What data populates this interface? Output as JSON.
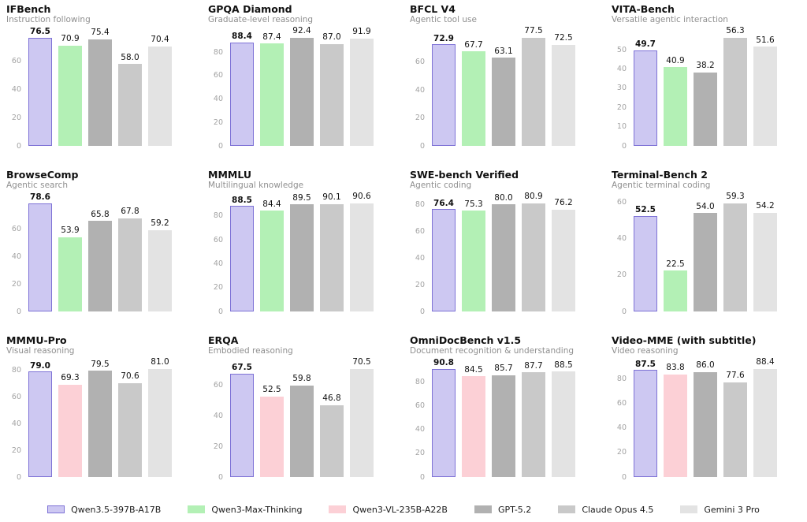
{
  "page": {
    "background": "#ffffff"
  },
  "highlight_model": "Qwen3.5-397B-A17B",
  "colors": {
    "Qwen3.5-397B-A17B": {
      "fill": "#cdc8f2",
      "edge": "#7e72d6"
    },
    "Qwen3-Max-Thinking": {
      "fill": "#b3f0b5"
    },
    "Qwen3-VL-235B-A22B": {
      "fill": "#fcd0d6"
    },
    "GPT-5.2": {
      "fill": "#b1b1b1"
    },
    "Claude Opus 4.5": {
      "fill": "#c9c9c9"
    },
    "Gemini 3 Pro": {
      "fill": "#e3e3e3"
    }
  },
  "legend": {
    "items": [
      {
        "label": "Qwen3.5-397B-A17B",
        "key": "Qwen3.5-397B-A17B"
      },
      {
        "label": "Qwen3-Max-Thinking",
        "key": "Qwen3-Max-Thinking"
      },
      {
        "label": "Qwen3-VL-235B-A22B",
        "key": "Qwen3-VL-235B-A22B"
      },
      {
        "label": "GPT-5.2",
        "key": "GPT-5.2"
      },
      {
        "label": "Claude Opus 4.5",
        "key": "Claude Opus 4.5"
      },
      {
        "label": "Gemini 3 Pro",
        "key": "Gemini 3 Pro"
      }
    ]
  },
  "chart_data": [
    {
      "type": "bar",
      "title": "IFBench",
      "subtitle": "Instruction following",
      "models": [
        "Qwen3.5-397B-A17B",
        "Qwen3-Max-Thinking",
        "GPT-5.2",
        "Claude Opus 4.5",
        "Gemini 3 Pro"
      ],
      "values": [
        76.5,
        70.9,
        75.4,
        58.0,
        70.4
      ],
      "labels": [
        "76.5",
        "70.9",
        "75.4",
        "58.0",
        "70.4"
      ],
      "yticks": [
        0,
        20,
        40,
        60
      ],
      "ylim": [
        0,
        80.3
      ],
      "ymax": 80.3
    },
    {
      "type": "bar",
      "title": "GPQA Diamond",
      "subtitle": "Graduate-level reasoning",
      "models": [
        "Qwen3.5-397B-A17B",
        "Qwen3-Max-Thinking",
        "GPT-5.2",
        "Claude Opus 4.5",
        "Gemini 3 Pro"
      ],
      "values": [
        88.4,
        87.4,
        92.4,
        87.0,
        91.9
      ],
      "labels": [
        "88.4",
        "87.4",
        "92.4",
        "87.0",
        "91.9"
      ],
      "yticks": [
        0,
        20,
        40,
        60,
        80
      ],
      "ylim": [
        0,
        97.0
      ],
      "ymax": 97.0
    },
    {
      "type": "bar",
      "title": "BFCL V4",
      "subtitle": "Agentic tool use",
      "models": [
        "Qwen3.5-397B-A17B",
        "Qwen3-Max-Thinking",
        "GPT-5.2",
        "Claude Opus 4.5",
        "Gemini 3 Pro"
      ],
      "values": [
        72.9,
        67.7,
        63.1,
        77.5,
        72.5
      ],
      "labels": [
        "72.9",
        "67.7",
        "63.1",
        "77.5",
        "72.5"
      ],
      "yticks": [
        0,
        20,
        40,
        60
      ],
      "ylim": [
        0,
        81.4
      ],
      "ymax": 81.4
    },
    {
      "type": "bar",
      "title": "VITA-Bench",
      "subtitle": "Versatile agentic interaction",
      "models": [
        "Qwen3.5-397B-A17B",
        "Qwen3-Max-Thinking",
        "GPT-5.2",
        "Claude Opus 4.5",
        "Gemini 3 Pro"
      ],
      "values": [
        49.7,
        40.9,
        38.2,
        56.3,
        51.6
      ],
      "labels": [
        "49.7",
        "40.9",
        "38.2",
        "56.3",
        "51.6"
      ],
      "yticks": [
        0,
        10,
        20,
        30,
        40,
        50
      ],
      "ylim": [
        0,
        59.1
      ],
      "ymax": 59.1
    },
    {
      "type": "bar",
      "title": "BrowseComp",
      "subtitle": "Agentic search",
      "models": [
        "Qwen3.5-397B-A17B",
        "Qwen3-Max-Thinking",
        "GPT-5.2",
        "Claude Opus 4.5",
        "Gemini 3 Pro"
      ],
      "values": [
        78.6,
        53.9,
        65.8,
        67.8,
        59.2
      ],
      "labels": [
        "78.6",
        "53.9",
        "65.8",
        "67.8",
        "59.2"
      ],
      "yticks": [
        0,
        20,
        40,
        60
      ],
      "ylim": [
        0,
        82.5
      ],
      "ymax": 82.5
    },
    {
      "type": "bar",
      "title": "MMMLU",
      "subtitle": "Multilingual knowledge",
      "models": [
        "Qwen3.5-397B-A17B",
        "Qwen3-Max-Thinking",
        "GPT-5.2",
        "Claude Opus 4.5",
        "Gemini 3 Pro"
      ],
      "values": [
        88.5,
        84.4,
        89.5,
        90.1,
        90.6
      ],
      "labels": [
        "88.5",
        "84.4",
        "89.5",
        "90.1",
        "90.6"
      ],
      "yticks": [
        0,
        20,
        40,
        60,
        80
      ],
      "ylim": [
        0,
        95.1
      ],
      "ymax": 95.1
    },
    {
      "type": "bar",
      "title": "SWE-bench Verified",
      "subtitle": "Agentic coding",
      "models": [
        "Qwen3.5-397B-A17B",
        "Qwen3-Max-Thinking",
        "GPT-5.2",
        "Claude Opus 4.5",
        "Gemini 3 Pro"
      ],
      "values": [
        76.4,
        75.3,
        80.0,
        80.9,
        76.2
      ],
      "labels": [
        "76.4",
        "75.3",
        "80.0",
        "80.9",
        "76.2"
      ],
      "yticks": [
        0,
        20,
        40,
        60,
        80
      ],
      "ylim": [
        0,
        84.9
      ],
      "ymax": 84.9
    },
    {
      "type": "bar",
      "title": "Terminal-Bench 2",
      "subtitle": "Agentic terminal coding",
      "models": [
        "Qwen3.5-397B-A17B",
        "Qwen3-Max-Thinking",
        "GPT-5.2",
        "Claude Opus 4.5",
        "Gemini 3 Pro"
      ],
      "values": [
        52.5,
        22.5,
        54.0,
        59.3,
        54.2
      ],
      "labels": [
        "52.5",
        "22.5",
        "54.0",
        "59.3",
        "54.2"
      ],
      "yticks": [
        0,
        20,
        40,
        60
      ],
      "ylim": [
        0,
        62.3
      ],
      "ymax": 62.3
    },
    {
      "type": "bar",
      "title": "MMMU-Pro",
      "subtitle": "Visual reasoning",
      "models": [
        "Qwen3.5-397B-A17B",
        "Qwen3-VL-235B-A22B",
        "GPT-5.2",
        "Claude Opus 4.5",
        "Gemini 3 Pro"
      ],
      "values": [
        79.0,
        69.3,
        79.5,
        70.6,
        81.0
      ],
      "labels": [
        "79.0",
        "69.3",
        "79.5",
        "70.6",
        "81.0"
      ],
      "yticks": [
        0,
        20,
        40,
        60,
        80
      ],
      "ylim": [
        0,
        85.1
      ],
      "ymax": 85.1
    },
    {
      "type": "bar",
      "title": "ERQA",
      "subtitle": "Embodied reasoning",
      "models": [
        "Qwen3.5-397B-A17B",
        "Qwen3-VL-235B-A22B",
        "GPT-5.2",
        "Claude Opus 4.5",
        "Gemini 3 Pro"
      ],
      "values": [
        67.5,
        52.5,
        59.8,
        46.8,
        70.5
      ],
      "labels": [
        "67.5",
        "52.5",
        "59.8",
        "46.8",
        "70.5"
      ],
      "yticks": [
        0,
        20,
        40,
        60
      ],
      "ylim": [
        0,
        74.0
      ],
      "ymax": 74.0
    },
    {
      "type": "bar",
      "title": "OmniDocBench v1.5",
      "subtitle": "Document recognition & understanding",
      "models": [
        "Qwen3.5-397B-A17B",
        "Qwen3-VL-235B-A22B",
        "GPT-5.2",
        "Claude Opus 4.5",
        "Gemini 3 Pro"
      ],
      "values": [
        90.8,
        84.5,
        85.7,
        87.7,
        88.5
      ],
      "labels": [
        "90.8",
        "84.5",
        "85.7",
        "87.7",
        "88.5"
      ],
      "yticks": [
        0,
        20,
        40,
        60,
        80
      ],
      "ylim": [
        0,
        95.3
      ],
      "ymax": 95.3
    },
    {
      "type": "bar",
      "title": "Video-MME (with subtitle)",
      "subtitle": "Video reasoning",
      "models": [
        "Qwen3.5-397B-A17B",
        "Qwen3-VL-235B-A22B",
        "GPT-5.2",
        "Claude Opus 4.5",
        "Gemini 3 Pro"
      ],
      "values": [
        87.5,
        83.8,
        86.0,
        77.6,
        88.4
      ],
      "labels": [
        "87.5",
        "83.8",
        "86.0",
        "77.6",
        "88.4"
      ],
      "yticks": [
        0,
        20,
        40,
        60,
        80
      ],
      "ylim": [
        0,
        92.8
      ],
      "ymax": 92.8
    }
  ]
}
